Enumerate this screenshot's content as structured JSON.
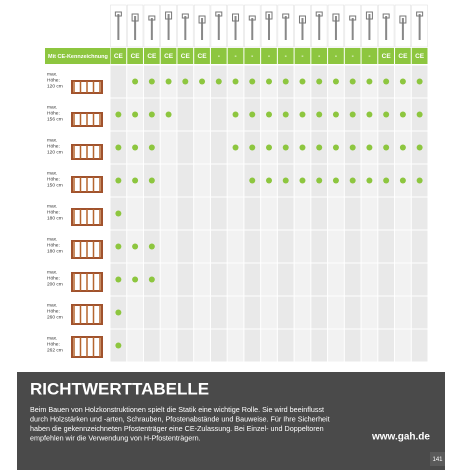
{
  "table": {
    "ce_label": "Mit CE-Kennzeichnung",
    "ce_marks": [
      "CE",
      "CE",
      "CE",
      "CE",
      "CE",
      "CE",
      "-",
      "-",
      "-",
      "-",
      "-",
      "-",
      "-",
      "-",
      "-",
      "-",
      "CE",
      "CE",
      "CE"
    ],
    "rows": [
      {
        "label": [
          "max.",
          "Höhe:",
          "120 cm"
        ],
        "cells": [
          false,
          true,
          true,
          true,
          true,
          true,
          true,
          true,
          true,
          true,
          true,
          true,
          true,
          true,
          true,
          true,
          true,
          true,
          true
        ]
      },
      {
        "label": [
          "max.",
          "Höhe:",
          "156 cm"
        ],
        "cells": [
          true,
          true,
          true,
          true,
          false,
          false,
          false,
          true,
          true,
          true,
          true,
          true,
          true,
          true,
          true,
          true,
          true,
          true,
          true
        ]
      },
      {
        "label": [
          "max.",
          "Höhe:",
          "120 cm"
        ],
        "cells": [
          true,
          true,
          true,
          false,
          false,
          false,
          false,
          true,
          true,
          true,
          true,
          true,
          true,
          true,
          true,
          true,
          true,
          true,
          true
        ]
      },
      {
        "label": [
          "max.",
          "Höhe:",
          "150 cm"
        ],
        "cells": [
          true,
          true,
          true,
          false,
          false,
          false,
          false,
          false,
          true,
          true,
          true,
          true,
          true,
          true,
          true,
          true,
          true,
          true,
          true
        ]
      },
      {
        "label": [
          "max.",
          "Höhe:",
          "180 cm"
        ],
        "cells": [
          true,
          false,
          false,
          false,
          false,
          false,
          false,
          false,
          false,
          false,
          false,
          false,
          false,
          false,
          false,
          false,
          false,
          false,
          false
        ]
      },
      {
        "label": [
          "max.",
          "Höhe:",
          "180 cm"
        ],
        "cells": [
          true,
          true,
          true,
          false,
          false,
          false,
          false,
          false,
          false,
          false,
          false,
          false,
          false,
          false,
          false,
          false,
          false,
          false,
          false
        ]
      },
      {
        "label": [
          "max.",
          "Höhe:",
          "200 cm"
        ],
        "cells": [
          true,
          true,
          true,
          false,
          false,
          false,
          false,
          false,
          false,
          false,
          false,
          false,
          false,
          false,
          false,
          false,
          false,
          false,
          false
        ]
      },
      {
        "label": [
          "max.",
          "Höhe:",
          "260 cm"
        ],
        "cells": [
          true,
          false,
          false,
          false,
          false,
          false,
          false,
          false,
          false,
          false,
          false,
          false,
          false,
          false,
          false,
          false,
          false,
          false,
          false
        ]
      },
      {
        "label": [
          "max.",
          "Höhe:",
          "262 cm"
        ],
        "cells": [
          true,
          false,
          false,
          false,
          false,
          false,
          false,
          false,
          false,
          false,
          false,
          false,
          false,
          false,
          false,
          false,
          false,
          false,
          false
        ]
      }
    ]
  },
  "footer": {
    "title": "RICHTWERTTABELLE",
    "text": [
      "Beim Bauen von Holzkonstruktionen spielt die Statik eine wichtige Rolle. Sie wird beeinflusst",
      "durch Holzstärken und -arten, Schrauben, Pfostenabstände und Bauweise. Für Ihre Sicherheit",
      "haben die gekennzeichneten Pfostenträger eine CE-Zulassung. Bei Einzel- und Doppeltoren",
      "empfehlen wir die Verwendung von H-Pfostenträgern."
    ],
    "url": "www.gah.de",
    "page": "141"
  }
}
